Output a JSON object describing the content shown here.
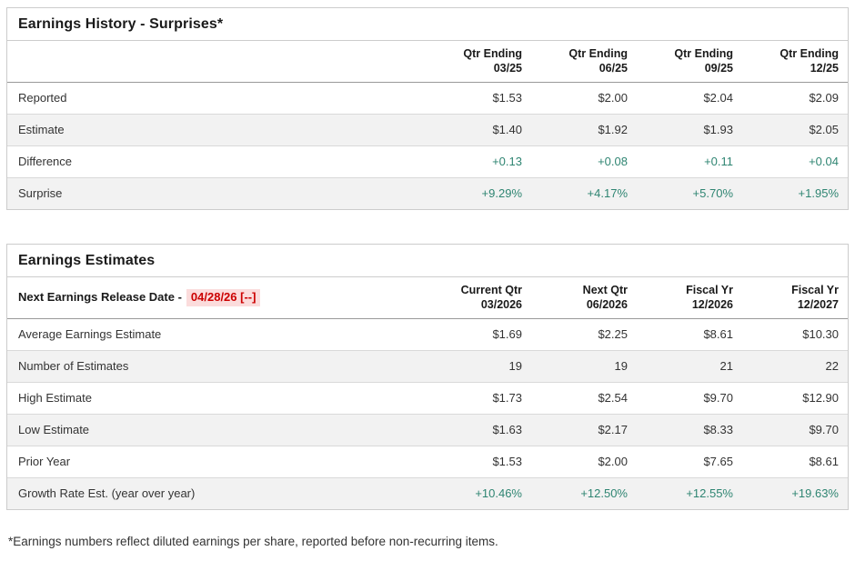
{
  "colors": {
    "positive_green": "#2f8572",
    "alert_red": "#cc0000",
    "alert_red_bg": "#fbdcdc",
    "row_alt_bg": "#f2f2f2",
    "border_gray": "#cccccc",
    "header_rule_gray": "#999999"
  },
  "earnings_history": {
    "title": "Earnings History - Surprises*",
    "columns": [
      {
        "line1": "Qtr Ending",
        "line2": "03/25"
      },
      {
        "line1": "Qtr Ending",
        "line2": "06/25"
      },
      {
        "line1": "Qtr Ending",
        "line2": "09/25"
      },
      {
        "line1": "Qtr Ending",
        "line2": "12/25"
      }
    ],
    "rows": [
      {
        "label": "Reported",
        "values": [
          "$1.53",
          "$2.00",
          "$2.04",
          "$2.09"
        ],
        "positive": false
      },
      {
        "label": "Estimate",
        "values": [
          "$1.40",
          "$1.92",
          "$1.93",
          "$2.05"
        ],
        "positive": false
      },
      {
        "label": "Difference",
        "values": [
          "+0.13",
          "+0.08",
          "+0.11",
          "+0.04"
        ],
        "positive": true
      },
      {
        "label": "Surprise",
        "values": [
          "+9.29%",
          "+4.17%",
          "+5.70%",
          "+1.95%"
        ],
        "positive": true
      }
    ]
  },
  "earnings_estimates": {
    "title": "Earnings Estimates",
    "release_date_label": "Next Earnings Release Date -",
    "release_date_value": "04/28/26 [--]",
    "columns": [
      {
        "line1": "Current Qtr",
        "line2": "03/2026"
      },
      {
        "line1": "Next Qtr",
        "line2": "06/2026"
      },
      {
        "line1": "Fiscal Yr",
        "line2": "12/2026"
      },
      {
        "line1": "Fiscal Yr",
        "line2": "12/2027"
      }
    ],
    "rows": [
      {
        "label": "Average Earnings Estimate",
        "values": [
          "$1.69",
          "$2.25",
          "$8.61",
          "$10.30"
        ],
        "positive": false
      },
      {
        "label": "Number of Estimates",
        "values": [
          "19",
          "19",
          "21",
          "22"
        ],
        "positive": false
      },
      {
        "label": "High Estimate",
        "values": [
          "$1.73",
          "$2.54",
          "$9.70",
          "$12.90"
        ],
        "positive": false
      },
      {
        "label": "Low Estimate",
        "values": [
          "$1.63",
          "$2.17",
          "$8.33",
          "$9.70"
        ],
        "positive": false
      },
      {
        "label": "Prior Year",
        "values": [
          "$1.53",
          "$2.00",
          "$7.65",
          "$8.61"
        ],
        "positive": false
      },
      {
        "label": "Growth Rate Est. (year over year)",
        "values": [
          "+10.46%",
          "+12.50%",
          "+12.55%",
          "+19.63%"
        ],
        "positive": true
      }
    ]
  },
  "footnote": "*Earnings numbers reflect diluted earnings per share, reported before non-recurring items."
}
